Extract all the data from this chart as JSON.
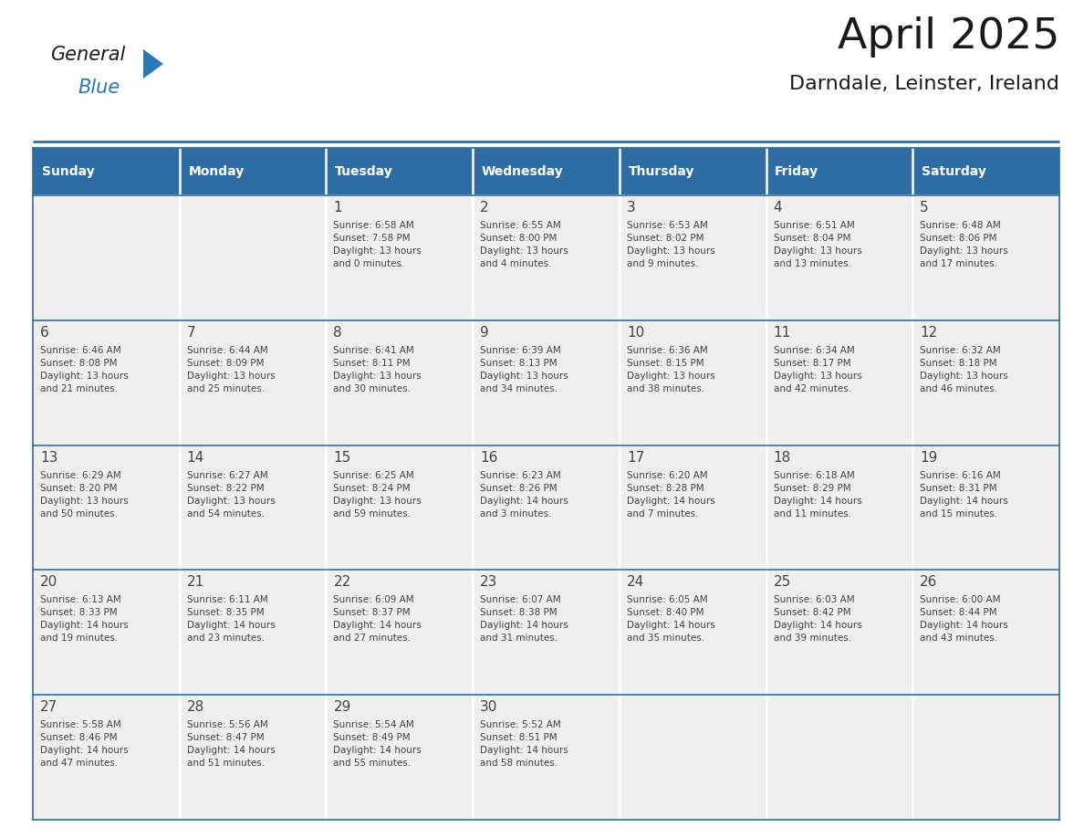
{
  "title": "April 2025",
  "subtitle": "Darndale, Leinster, Ireland",
  "header_bg_color": "#2E6DA4",
  "header_text_color": "#FFFFFF",
  "day_names": [
    "Sunday",
    "Monday",
    "Tuesday",
    "Wednesday",
    "Thursday",
    "Friday",
    "Saturday"
  ],
  "cell_bg_color": "#EFEFEF",
  "border_color": "#2E6DA4",
  "row_line_color": "#2E6DA4",
  "text_color": "#444444",
  "title_color": "#1a1a1a",
  "logo_black_color": "#1a1a1a",
  "logo_blue_color": "#2878BA",
  "weeks": [
    [
      {
        "day": null,
        "text": ""
      },
      {
        "day": null,
        "text": ""
      },
      {
        "day": 1,
        "text": "Sunrise: 6:58 AM\nSunset: 7:58 PM\nDaylight: 13 hours\nand 0 minutes."
      },
      {
        "day": 2,
        "text": "Sunrise: 6:55 AM\nSunset: 8:00 PM\nDaylight: 13 hours\nand 4 minutes."
      },
      {
        "day": 3,
        "text": "Sunrise: 6:53 AM\nSunset: 8:02 PM\nDaylight: 13 hours\nand 9 minutes."
      },
      {
        "day": 4,
        "text": "Sunrise: 6:51 AM\nSunset: 8:04 PM\nDaylight: 13 hours\nand 13 minutes."
      },
      {
        "day": 5,
        "text": "Sunrise: 6:48 AM\nSunset: 8:06 PM\nDaylight: 13 hours\nand 17 minutes."
      }
    ],
    [
      {
        "day": 6,
        "text": "Sunrise: 6:46 AM\nSunset: 8:08 PM\nDaylight: 13 hours\nand 21 minutes."
      },
      {
        "day": 7,
        "text": "Sunrise: 6:44 AM\nSunset: 8:09 PM\nDaylight: 13 hours\nand 25 minutes."
      },
      {
        "day": 8,
        "text": "Sunrise: 6:41 AM\nSunset: 8:11 PM\nDaylight: 13 hours\nand 30 minutes."
      },
      {
        "day": 9,
        "text": "Sunrise: 6:39 AM\nSunset: 8:13 PM\nDaylight: 13 hours\nand 34 minutes."
      },
      {
        "day": 10,
        "text": "Sunrise: 6:36 AM\nSunset: 8:15 PM\nDaylight: 13 hours\nand 38 minutes."
      },
      {
        "day": 11,
        "text": "Sunrise: 6:34 AM\nSunset: 8:17 PM\nDaylight: 13 hours\nand 42 minutes."
      },
      {
        "day": 12,
        "text": "Sunrise: 6:32 AM\nSunset: 8:18 PM\nDaylight: 13 hours\nand 46 minutes."
      }
    ],
    [
      {
        "day": 13,
        "text": "Sunrise: 6:29 AM\nSunset: 8:20 PM\nDaylight: 13 hours\nand 50 minutes."
      },
      {
        "day": 14,
        "text": "Sunrise: 6:27 AM\nSunset: 8:22 PM\nDaylight: 13 hours\nand 54 minutes."
      },
      {
        "day": 15,
        "text": "Sunrise: 6:25 AM\nSunset: 8:24 PM\nDaylight: 13 hours\nand 59 minutes."
      },
      {
        "day": 16,
        "text": "Sunrise: 6:23 AM\nSunset: 8:26 PM\nDaylight: 14 hours\nand 3 minutes."
      },
      {
        "day": 17,
        "text": "Sunrise: 6:20 AM\nSunset: 8:28 PM\nDaylight: 14 hours\nand 7 minutes."
      },
      {
        "day": 18,
        "text": "Sunrise: 6:18 AM\nSunset: 8:29 PM\nDaylight: 14 hours\nand 11 minutes."
      },
      {
        "day": 19,
        "text": "Sunrise: 6:16 AM\nSunset: 8:31 PM\nDaylight: 14 hours\nand 15 minutes."
      }
    ],
    [
      {
        "day": 20,
        "text": "Sunrise: 6:13 AM\nSunset: 8:33 PM\nDaylight: 14 hours\nand 19 minutes."
      },
      {
        "day": 21,
        "text": "Sunrise: 6:11 AM\nSunset: 8:35 PM\nDaylight: 14 hours\nand 23 minutes."
      },
      {
        "day": 22,
        "text": "Sunrise: 6:09 AM\nSunset: 8:37 PM\nDaylight: 14 hours\nand 27 minutes."
      },
      {
        "day": 23,
        "text": "Sunrise: 6:07 AM\nSunset: 8:38 PM\nDaylight: 14 hours\nand 31 minutes."
      },
      {
        "day": 24,
        "text": "Sunrise: 6:05 AM\nSunset: 8:40 PM\nDaylight: 14 hours\nand 35 minutes."
      },
      {
        "day": 25,
        "text": "Sunrise: 6:03 AM\nSunset: 8:42 PM\nDaylight: 14 hours\nand 39 minutes."
      },
      {
        "day": 26,
        "text": "Sunrise: 6:00 AM\nSunset: 8:44 PM\nDaylight: 14 hours\nand 43 minutes."
      }
    ],
    [
      {
        "day": 27,
        "text": "Sunrise: 5:58 AM\nSunset: 8:46 PM\nDaylight: 14 hours\nand 47 minutes."
      },
      {
        "day": 28,
        "text": "Sunrise: 5:56 AM\nSunset: 8:47 PM\nDaylight: 14 hours\nand 51 minutes."
      },
      {
        "day": 29,
        "text": "Sunrise: 5:54 AM\nSunset: 8:49 PM\nDaylight: 14 hours\nand 55 minutes."
      },
      {
        "day": 30,
        "text": "Sunrise: 5:52 AM\nSunset: 8:51 PM\nDaylight: 14 hours\nand 58 minutes."
      },
      {
        "day": null,
        "text": ""
      },
      {
        "day": null,
        "text": ""
      },
      {
        "day": null,
        "text": ""
      }
    ]
  ]
}
